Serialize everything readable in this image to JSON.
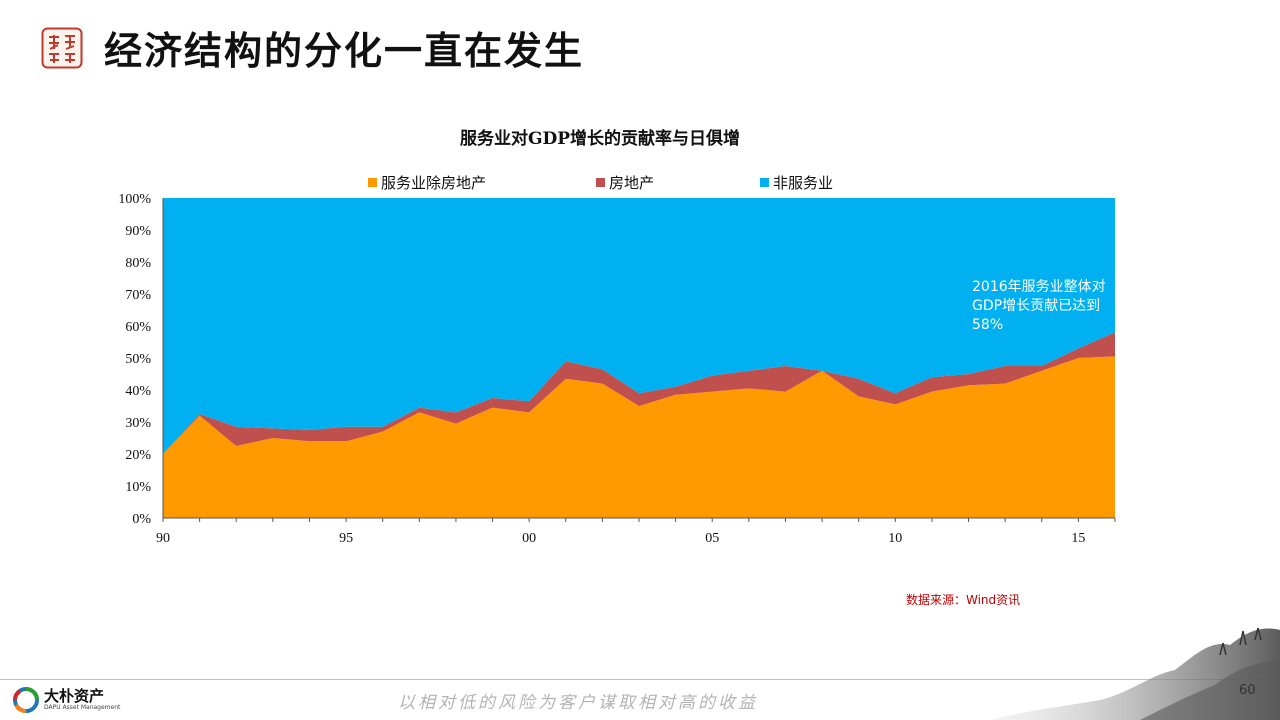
{
  "header": {
    "title": "经济结构的分化一直在发生",
    "logo_text": "大朴资产"
  },
  "chart_data": {
    "type": "area",
    "stacked": true,
    "title": "服务业对GDP增长的贡献率与日俱增",
    "xlabel": "",
    "ylabel": "",
    "x": [
      1990,
      1991,
      1992,
      1993,
      1994,
      1995,
      1996,
      1997,
      1998,
      1999,
      2000,
      2001,
      2002,
      2003,
      2004,
      2005,
      2006,
      2007,
      2008,
      2009,
      2010,
      2011,
      2012,
      2013,
      2014,
      2015,
      2016
    ],
    "x_tick_labels": [
      "90",
      "95",
      "00",
      "05",
      "10",
      "15"
    ],
    "x_tick_years": [
      1990,
      1995,
      2000,
      2005,
      2010,
      2015
    ],
    "ylim": [
      0,
      100
    ],
    "y_tick_labels": [
      "0%",
      "10%",
      "20%",
      "30%",
      "40%",
      "50%",
      "60%",
      "70%",
      "80%",
      "90%",
      "100%"
    ],
    "grid": false,
    "legend_position": "top",
    "series": [
      {
        "name": "服务业除房地产",
        "color": "#FF9900",
        "values": [
          20,
          32,
          22.5,
          25,
          24,
          24,
          27,
          33,
          29.5,
          34.5,
          33,
          43.5,
          42,
          35,
          38.5,
          39.5,
          40.5,
          39.5,
          46,
          38,
          35.5,
          39.5,
          41.5,
          42,
          46,
          50,
          50.5
        ]
      },
      {
        "name": "房地产",
        "color": "#C0504D",
        "values": [
          0,
          0.5,
          6,
          3,
          3.5,
          4.5,
          1.5,
          1.5,
          3.5,
          3,
          3.5,
          5.5,
          4.5,
          4,
          2.5,
          5,
          5.5,
          8,
          0,
          5.5,
          3.5,
          4.5,
          3.5,
          5.5,
          1.5,
          3,
          7.5
        ]
      },
      {
        "name": "非服务业",
        "color": "#00B0F0",
        "values": [
          80,
          67.5,
          71.5,
          72,
          72.5,
          71.5,
          71.5,
          65.5,
          67,
          62.5,
          63.5,
          51,
          53.5,
          61,
          59,
          55.5,
          54,
          52.5,
          54,
          56.5,
          61,
          56,
          55,
          52.5,
          52.5,
          47,
          42
        ]
      }
    ],
    "annotations": [
      "2016年服务业整体对GDP增长贡献已达到58%"
    ],
    "source": "数据来源：Wind资讯"
  },
  "footer": {
    "brand_cn": "大朴资产",
    "brand_en": "DAPU Asset Management",
    "slogan": "以相对低的风险为客户谋取相对高的收益",
    "page_number": "60"
  }
}
